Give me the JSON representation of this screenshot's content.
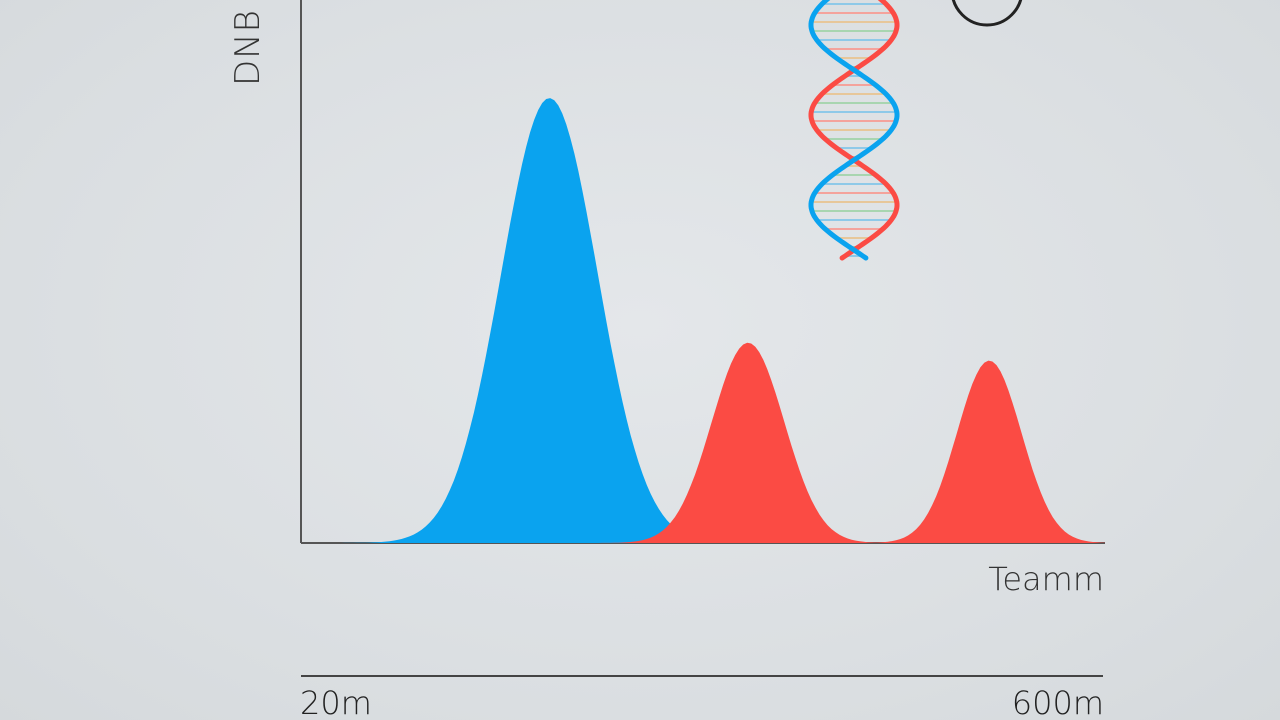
{
  "chart_data": {
    "type": "area",
    "ylabel": "DNB D",
    "xlabel": "Teamm",
    "range_start": "20m",
    "range_end": "600m",
    "grid": false,
    "legend": "none",
    "peaks": [
      {
        "color": "#0aa3ef",
        "center": 0.309,
        "height": 1.0,
        "width": 0.06
      },
      {
        "color": "#fb4b44",
        "center": 0.556,
        "height": 0.45,
        "width": 0.045
      },
      {
        "color": "#fb4b44",
        "center": 0.856,
        "height": 0.41,
        "width": 0.04
      }
    ]
  },
  "colors": {
    "background": "#dde1e4",
    "axis": "#555555",
    "blue": "#0aa3ef",
    "red": "#fb4b44"
  },
  "decorations": {
    "helix_icon": "dna-helix-icon",
    "circle_icon": "circle-outline-icon"
  }
}
